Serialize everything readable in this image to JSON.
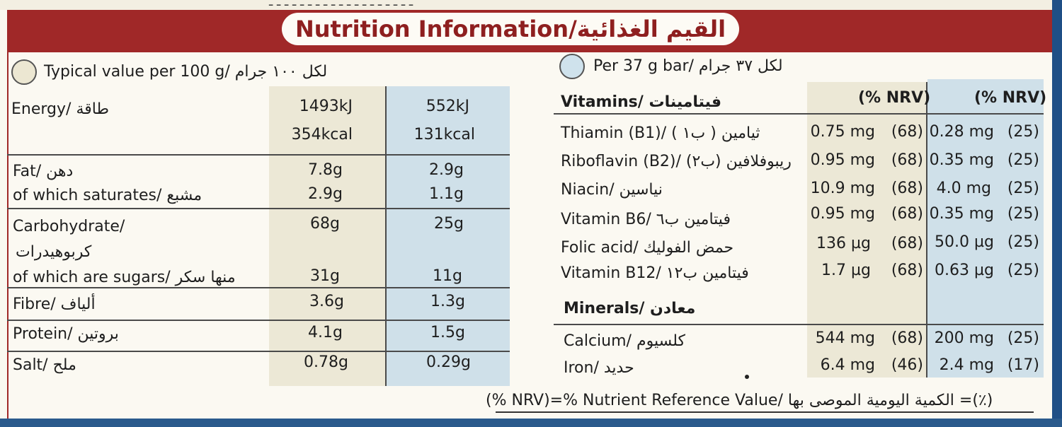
{
  "title": "Nutrition Information/القيم الغذائية",
  "top_scribble": "ـ ـ ـ ـ ـ ـ ـ ـ ـ ـ ـ ـ ـ ـ ـ ـ ـ ـ ـ",
  "left_header": "Typical value per 100 g/ لكل ١٠٠ جرام",
  "right_header": "Per 37 g bar/ لكل ٣٧ جرام",
  "left_table": {
    "rows": [
      {
        "label": "Energy/ طاقة",
        "per100": "1493kJ",
        "per_bar": "552kJ"
      },
      {
        "label": "",
        "per100": "354kcal",
        "per_bar": "131kcal"
      },
      {
        "label": "Fat/ دهن",
        "per100": "7.8g",
        "per_bar": "2.9g"
      },
      {
        "label": "of which saturates/ مشبع",
        "per100": "2.9g",
        "per_bar": "1.1g"
      },
      {
        "label": "Carbohydrate/",
        "per100": "68g",
        "per_bar": "25g"
      },
      {
        "label": "كربوهيدرات",
        "per100": "",
        "per_bar": ""
      },
      {
        "label": "of which are sugars/ منها سكر",
        "per100": "31g",
        "per_bar": "11g"
      },
      {
        "label": "Fibre/ ألياف",
        "per100": "3.6g",
        "per_bar": "1.3g"
      },
      {
        "label": "Protein/ بروتين",
        "per100": "4.1g",
        "per_bar": "1.5g"
      },
      {
        "label": "Salt/ ملح",
        "per100": "0.78g",
        "per_bar": "0.29g"
      }
    ]
  },
  "right_table": {
    "vitamins_heading": "Vitamins/ فيتامينات",
    "nrv_heading_1": "(% NRV)",
    "nrv_heading_2": "(% NRV)",
    "vitamins": [
      {
        "label": "Thiamin (B1)/ ( ب١ ) ثيامين",
        "per100": "0.75 mg",
        "nrv100": "(68)",
        "per_bar": "0.28 mg",
        "nrv_bar": "(25)"
      },
      {
        "label": "Riboflavin (B2)/ (ب٢) ريبوفلافين",
        "per100": "0.95 mg",
        "nrv100": "(68)",
        "per_bar": "0.35 mg",
        "nrv_bar": "(25)"
      },
      {
        "label": "Niacin/ نياسين",
        "per100": "10.9 mg",
        "nrv100": "(68)",
        "per_bar": "4.0 mg",
        "nrv_bar": "(25)"
      },
      {
        "label": "Vitamin B6/ فيتامين ب٦",
        "per100": "0.95 mg",
        "nrv100": "(68)",
        "per_bar": "0.35 mg",
        "nrv_bar": "(25)"
      },
      {
        "label": "Folic acid/ حمض الفوليك",
        "per100": "136 µg",
        "nrv100": "(68)",
        "per_bar": "50.0 µg",
        "nrv_bar": "(25)"
      },
      {
        "label": "Vitamin B12/ فيتامين ب١٢",
        "per100": "1.7 µg",
        "nrv100": "(68)",
        "per_bar": "0.63 µg",
        "nrv_bar": "(25)"
      }
    ],
    "minerals_heading": "Minerals/ معادن",
    "minerals": [
      {
        "label": "Calcium/ كلسيوم",
        "per100": "544 mg",
        "nrv100": "(68)",
        "per_bar": "200 mg",
        "nrv_bar": "(25)"
      },
      {
        "label": "Iron/ حديد",
        "per100": "6.4 mg",
        "nrv100": "(46)",
        "per_bar": "2.4 mg",
        "nrv_bar": "(17)"
      }
    ]
  },
  "footer": "(% NRV)=% Nutrient Reference Value/ الكمية اليومية الموصى بها =(٪)",
  "colors": {
    "title_red": "#a02828",
    "beige": "#ece8d6",
    "blue": "#cfe0e9",
    "edge_blue": "#1f4f86"
  }
}
